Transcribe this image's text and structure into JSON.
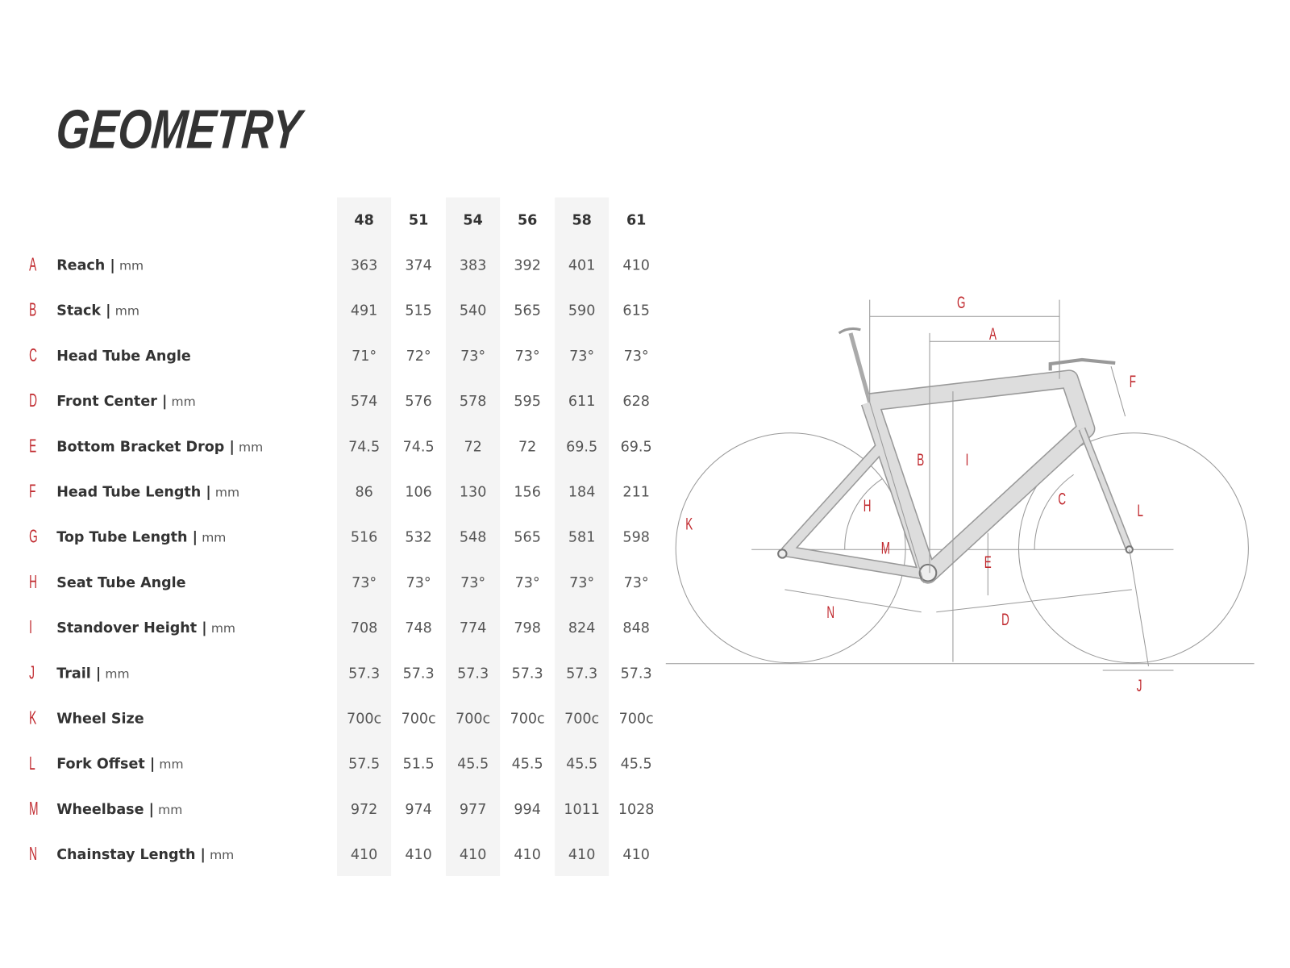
{
  "header": {
    "title": "GEOMETRY"
  },
  "table": {
    "sizes": [
      48,
      51,
      54,
      56,
      58,
      61
    ],
    "rows": [
      {
        "letter": "A",
        "name": "Reach |",
        "unit": "mm",
        "values": [
          363,
          374,
          383,
          392,
          401,
          410
        ]
      },
      {
        "letter": "B",
        "name": "Stack |",
        "unit": "mm",
        "values": [
          491,
          515,
          540,
          565,
          590,
          615
        ]
      },
      {
        "letter": "C",
        "name": "Head Tube Angle",
        "values": [
          "71°",
          "72°",
          "73°",
          "73°",
          "73°",
          "73°"
        ]
      },
      {
        "letter": "D",
        "name": "Front Center |",
        "unit": "mm",
        "values": [
          574,
          576,
          578,
          595,
          611,
          628
        ]
      },
      {
        "letter": "E",
        "name": "Bottom Bracket Drop |",
        "unit": "mm",
        "values": [
          74.5,
          74.5,
          72,
          72,
          69.5,
          69.5
        ]
      },
      {
        "letter": "F",
        "name": "Head Tube Length |",
        "unit": "mm",
        "values": [
          86,
          106,
          130,
          156,
          184,
          211
        ]
      },
      {
        "letter": "G",
        "name": "Top Tube Length |",
        "unit": "mm",
        "values": [
          516,
          532,
          548,
          565,
          581,
          598
        ]
      },
      {
        "letter": "H",
        "name": "Seat Tube Angle",
        "values": [
          "73°",
          "73°",
          "73°",
          "73°",
          "73°",
          "73°"
        ]
      },
      {
        "letter": "I",
        "name": "Standover Height |",
        "unit": "mm",
        "values": [
          708,
          748,
          774,
          798,
          824,
          848
        ]
      },
      {
        "letter": "J",
        "name": "Trail |",
        "unit": "mm",
        "values": [
          57.3,
          57.3,
          57.3,
          57.3,
          57.3,
          57.3
        ]
      },
      {
        "letter": "K",
        "name": "Wheel Size",
        "values": [
          "700c",
          "700c",
          "700c",
          "700c",
          "700c",
          "700c"
        ]
      },
      {
        "letter": "L",
        "name": "Fork Offset |",
        "unit": "mm",
        "values": [
          57.5,
          51.5,
          45.5,
          45.5,
          45.5,
          45.5
        ]
      },
      {
        "letter": "M",
        "name": "Wheelbase |",
        "unit": "mm",
        "values": [
          972,
          974,
          977,
          994,
          1011,
          1028
        ]
      },
      {
        "letter": "N",
        "name": "Chainstay Length |",
        "unit": "mm",
        "values": [
          410,
          410,
          410,
          410,
          410,
          410
        ]
      }
    ]
  },
  "diagram": {
    "labels": [
      "G",
      "A",
      "F",
      "B",
      "I",
      "H",
      "C",
      "L",
      "K",
      "M",
      "E",
      "N",
      "D",
      "J"
    ]
  }
}
